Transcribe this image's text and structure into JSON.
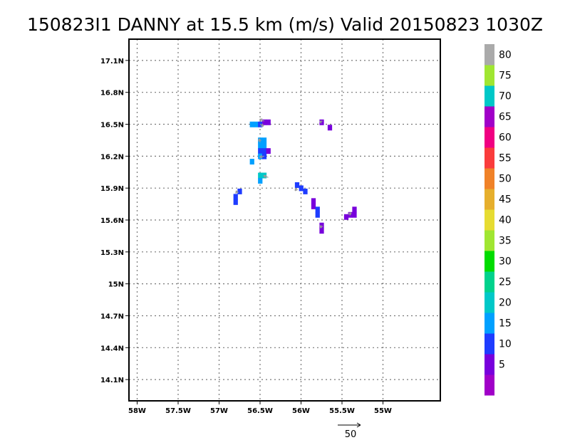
{
  "chart_data": {
    "type": "heatmap",
    "title": "150823I1 DANNY at 15.5 km (m/s) Valid 20150823 1030Z",
    "x_ticks": [
      "58W",
      "57.5W",
      "57W",
      "56.5W",
      "56W",
      "55.5W",
      "55W"
    ],
    "y_ticks": [
      "17.1N",
      "16.8N",
      "16.5N",
      "16.2N",
      "15.9N",
      "15.6N",
      "15.3N",
      "15N",
      "14.7N",
      "14.4N",
      "14.1N"
    ],
    "xlim": [
      -58.1,
      -54.3
    ],
    "ylim": [
      13.9,
      17.3
    ],
    "grid": true,
    "colorbar": {
      "labels": [
        "5",
        "10",
        "15",
        "20",
        "25",
        "30",
        "35",
        "40",
        "45",
        "50",
        "55",
        "60",
        "65",
        "70",
        "75",
        "80"
      ],
      "colors": [
        "#a000c8",
        "#7800dc",
        "#1e3cff",
        "#00a0ff",
        "#00c8c8",
        "#00d28c",
        "#00dc00",
        "#a0e632",
        "#e6dc32",
        "#e6af2d",
        "#f08228",
        "#fa3c3c",
        "#f00082",
        "#a000c8",
        "#00c8c8",
        "#a0e632",
        "#aaaaaa"
      ]
    },
    "cells": [
      {
        "lon": -56.6,
        "lat": 16.5,
        "speed": 17
      },
      {
        "lon": -56.55,
        "lat": 16.5,
        "speed": 17
      },
      {
        "lon": -56.5,
        "lat": 16.5,
        "speed": 12
      },
      {
        "lon": -56.45,
        "lat": 16.52,
        "speed": 8
      },
      {
        "lon": -56.4,
        "lat": 16.52,
        "speed": 8
      },
      {
        "lon": -56.5,
        "lat": 16.35,
        "speed": 18
      },
      {
        "lon": -56.45,
        "lat": 16.35,
        "speed": 18
      },
      {
        "lon": -56.5,
        "lat": 16.3,
        "speed": 17
      },
      {
        "lon": -56.45,
        "lat": 16.3,
        "speed": 17
      },
      {
        "lon": -56.5,
        "lat": 16.25,
        "speed": 12
      },
      {
        "lon": -56.45,
        "lat": 16.25,
        "speed": 12
      },
      {
        "lon": -56.4,
        "lat": 16.25,
        "speed": 8
      },
      {
        "lon": -56.5,
        "lat": 16.2,
        "speed": 17
      },
      {
        "lon": -56.45,
        "lat": 16.2,
        "speed": 12
      },
      {
        "lon": -56.6,
        "lat": 16.15,
        "speed": 17
      },
      {
        "lon": -56.5,
        "lat": 16.02,
        "speed": 20
      },
      {
        "lon": -56.45,
        "lat": 16.02,
        "speed": 20
      },
      {
        "lon": -56.5,
        "lat": 15.97,
        "speed": 17
      },
      {
        "lon": -56.05,
        "lat": 15.93,
        "speed": 12
      },
      {
        "lon": -56.0,
        "lat": 15.9,
        "speed": 12
      },
      {
        "lon": -55.95,
        "lat": 15.87,
        "speed": 12
      },
      {
        "lon": -56.75,
        "lat": 15.87,
        "speed": 12
      },
      {
        "lon": -56.8,
        "lat": 15.82,
        "speed": 12
      },
      {
        "lon": -56.8,
        "lat": 15.77,
        "speed": 12
      },
      {
        "lon": -55.85,
        "lat": 15.78,
        "speed": 8
      },
      {
        "lon": -55.85,
        "lat": 15.73,
        "speed": 8
      },
      {
        "lon": -55.8,
        "lat": 15.7,
        "speed": 12
      },
      {
        "lon": -55.8,
        "lat": 15.65,
        "speed": 12
      },
      {
        "lon": -55.75,
        "lat": 15.55,
        "speed": 8
      },
      {
        "lon": -55.75,
        "lat": 15.5,
        "speed": 8
      },
      {
        "lon": -55.45,
        "lat": 15.63,
        "speed": 8
      },
      {
        "lon": -55.4,
        "lat": 15.65,
        "speed": 8
      },
      {
        "lon": -55.35,
        "lat": 15.65,
        "speed": 8
      },
      {
        "lon": -55.35,
        "lat": 15.7,
        "speed": 8
      },
      {
        "lon": -55.75,
        "lat": 16.52,
        "speed": 8
      },
      {
        "lon": -55.65,
        "lat": 16.47,
        "speed": 8
      }
    ],
    "vectors": [
      {
        "lon": -56.45,
        "lat": 16.53,
        "u": -5,
        "v": 2
      },
      {
        "lon": -56.5,
        "lat": 16.5,
        "u": 4,
        "v": -2
      },
      {
        "lon": -56.5,
        "lat": 16.33,
        "u": -1,
        "v": 4
      },
      {
        "lon": -56.45,
        "lat": 16.2,
        "u": -5,
        "v": -1
      },
      {
        "lon": -56.4,
        "lat": 16.0,
        "u": -5,
        "v": 2
      },
      {
        "lon": -56.05,
        "lat": 15.9,
        "u": -2,
        "v": -3
      },
      {
        "lon": -56.78,
        "lat": 15.85,
        "u": -1,
        "v": 3
      },
      {
        "lon": -55.75,
        "lat": 15.55,
        "u": -1,
        "v": -3
      },
      {
        "lon": -55.42,
        "lat": 15.65,
        "u": 3,
        "v": 2
      },
      {
        "lon": -55.75,
        "lat": 16.52,
        "u": -2,
        "v": 1
      }
    ],
    "reference_vector": {
      "label": "50",
      "value": 50
    }
  }
}
